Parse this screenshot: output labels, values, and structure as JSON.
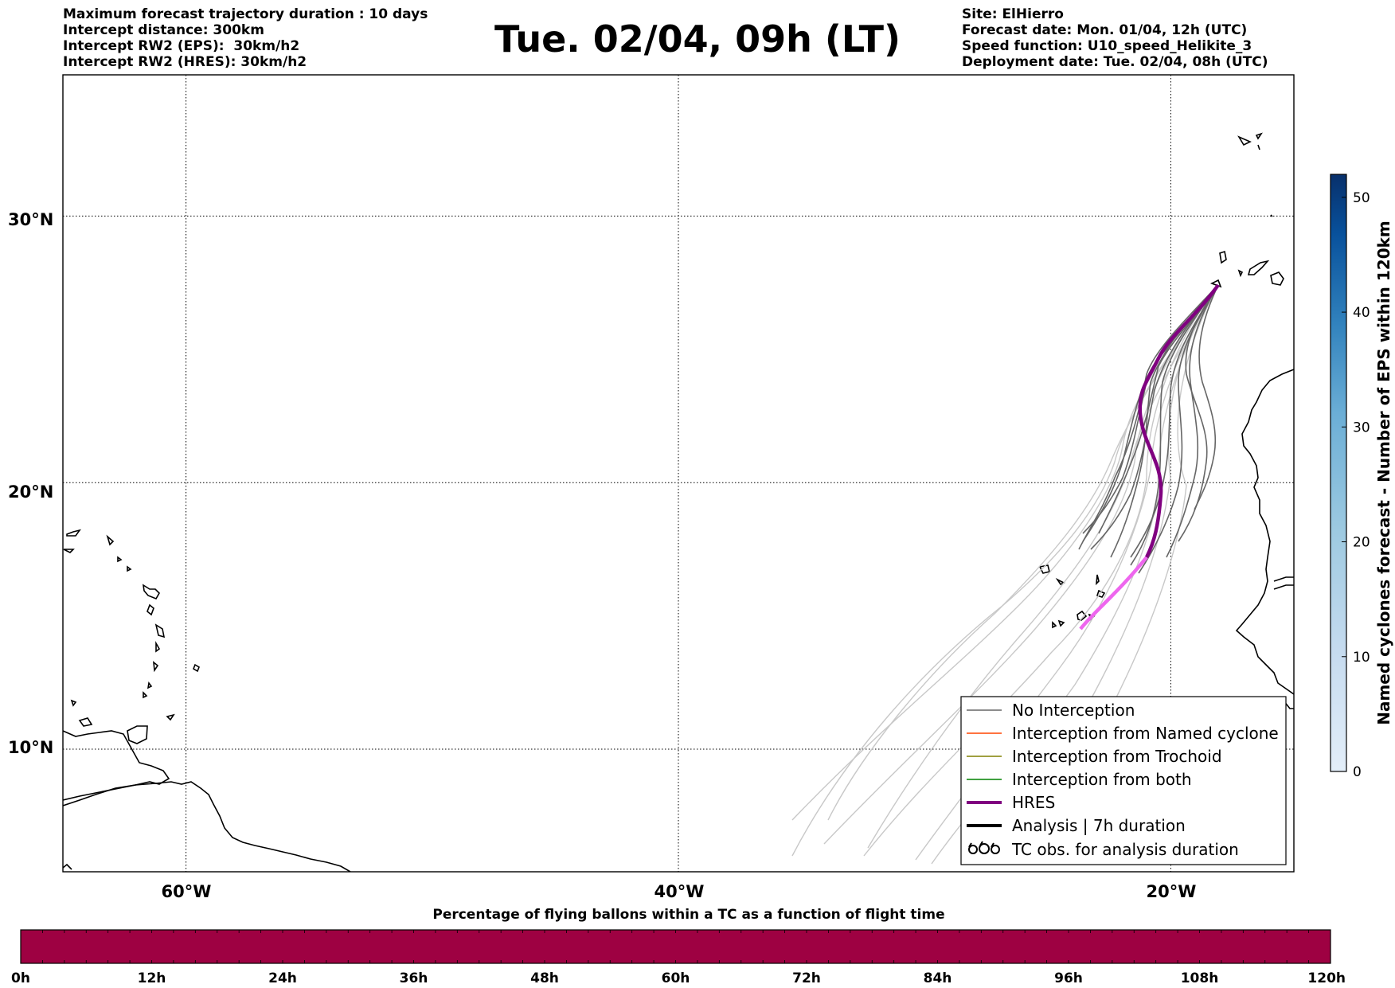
{
  "header": {
    "left_lines": [
      "Maximum forecast trajectory duration : 10 days",
      "Intercept distance: 300km",
      "Intercept RW2 (EPS):  30km/h2",
      "Intercept RW2 (HRES): 30km/h2"
    ],
    "title": "Tue. 02/04, 09h (LT)",
    "right_lines": [
      "Site: ElHierro",
      "Forecast date: Mon. 01/04, 12h (UTC)",
      "Speed function: U10_speed_Helikite_3",
      "Deployment date: Tue. 02/04, 08h (UTC)"
    ]
  },
  "map": {
    "lat_labels": [
      "30°N",
      "20°N",
      "10°N"
    ],
    "lon_labels": [
      "60°W",
      "40°W",
      "20°W"
    ],
    "lat_values": [
      30,
      20,
      10
    ],
    "lon_values": [
      -60,
      -40,
      -20
    ],
    "extent": {
      "lon_min": -65,
      "lon_max": -15,
      "lat_min": 5.4,
      "lat_max": 35.3
    },
    "grid": "dotted",
    "colors": {
      "no_interception": "#666666",
      "no_interception_late": "#c8c8c8",
      "named_cyclone": "#ff4500",
      "trochoid": "#808000",
      "both": "#008000",
      "hres": "#800080",
      "hres_late": "#ee66ee",
      "analysis": "#000000"
    }
  },
  "legend": {
    "items": [
      {
        "label": "No Interception",
        "color": "#666666",
        "style": "thin"
      },
      {
        "label": "Interception from Named cyclone",
        "color": "#ff4500",
        "style": "thin"
      },
      {
        "label": "Interception from Trochoid",
        "color": "#808000",
        "style": "thin"
      },
      {
        "label": "Interception from both",
        "color": "#008000",
        "style": "thin"
      },
      {
        "label": "HRES",
        "color": "#800080",
        "style": "thick"
      },
      {
        "label": "Analysis | 7h duration",
        "color": "#000000",
        "style": "thick"
      },
      {
        "label": "TC obs. for analysis duration",
        "color": "#000000",
        "style": "cyclone-icon"
      }
    ]
  },
  "colorbar_right": {
    "title": "Named cyclones forecast - Number of EPS within 120km",
    "ticks": [
      "0",
      "10",
      "20",
      "30",
      "40",
      "50"
    ],
    "tick_values": [
      0,
      10,
      20,
      30,
      40,
      50
    ],
    "max": 52,
    "color_low": "#e3eef9",
    "color_high": "#08306b"
  },
  "colorbar_bottom": {
    "title": "Percentage of flying ballons within a TC as a function of flight time",
    "ticks": [
      "0h",
      "12h",
      "24h",
      "36h",
      "48h",
      "60h",
      "72h",
      "84h",
      "96h",
      "108h",
      "120h"
    ],
    "fill_color": "#9e0142"
  }
}
